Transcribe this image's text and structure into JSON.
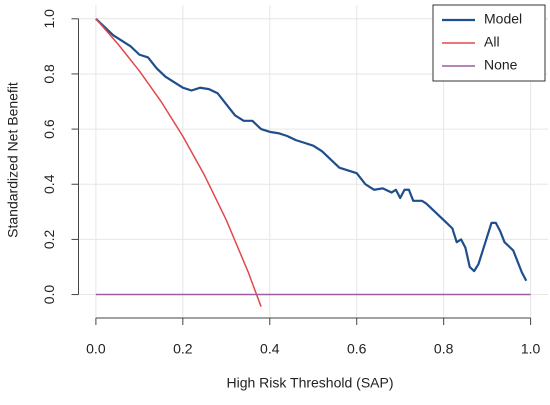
{
  "chart_data": {
    "type": "line",
    "xlabel": "High Risk Threshold (SAP)",
    "ylabel": "Standardized Net Benefit",
    "xlim": [
      -0.04,
      1.04
    ],
    "ylim": [
      -0.085,
      1.05
    ],
    "xticks": [
      {
        "value": 0,
        "label": "0.0"
      },
      0.2,
      0.4,
      0.6,
      0.8,
      {
        "value": 1,
        "label": "1.0"
      }
    ],
    "yticks": [
      {
        "value": 0,
        "label": "0.0"
      },
      0.2,
      0.4,
      0.6,
      0.8,
      {
        "value": 1,
        "label": "1.0"
      }
    ],
    "grid": true,
    "legend": "top-right",
    "series": [
      {
        "name": "Model",
        "color": "#1f4e8c",
        "x": [
          0,
          0.02,
          0.04,
          0.06,
          0.08,
          0.1,
          0.12,
          0.14,
          0.16,
          0.18,
          0.2,
          0.22,
          0.24,
          0.26,
          0.28,
          0.3,
          0.32,
          0.34,
          0.36,
          0.38,
          0.4,
          0.42,
          0.44,
          0.46,
          0.48,
          0.5,
          0.52,
          0.54,
          0.56,
          0.58,
          0.6,
          0.62,
          0.64,
          0.66,
          0.68,
          0.69,
          0.7,
          0.71,
          0.72,
          0.73,
          0.75,
          0.76,
          0.78,
          0.8,
          0.82,
          0.83,
          0.84,
          0.85,
          0.86,
          0.87,
          0.88,
          0.89,
          0.9,
          0.91,
          0.92,
          0.93,
          0.94,
          0.96,
          0.98,
          0.99
        ],
        "values": [
          1.0,
          0.97,
          0.94,
          0.92,
          0.9,
          0.87,
          0.86,
          0.82,
          0.79,
          0.77,
          0.75,
          0.74,
          0.75,
          0.745,
          0.73,
          0.69,
          0.65,
          0.63,
          0.63,
          0.6,
          0.59,
          0.585,
          0.575,
          0.56,
          0.55,
          0.54,
          0.52,
          0.49,
          0.46,
          0.45,
          0.44,
          0.4,
          0.38,
          0.385,
          0.37,
          0.38,
          0.35,
          0.38,
          0.38,
          0.34,
          0.34,
          0.33,
          0.3,
          0.27,
          0.24,
          0.19,
          0.2,
          0.17,
          0.1,
          0.085,
          0.11,
          0.16,
          0.21,
          0.26,
          0.26,
          0.23,
          0.19,
          0.16,
          0.08,
          0.05
        ]
      },
      {
        "name": "All",
        "color": "#e2484d",
        "x": [
          0,
          0.05,
          0.1,
          0.15,
          0.2,
          0.25,
          0.3,
          0.35,
          0.38
        ],
        "values": [
          1.0,
          0.91,
          0.811,
          0.7,
          0.574,
          0.432,
          0.27,
          0.083,
          -0.044
        ]
      },
      {
        "name": "None",
        "color": "#9b5f9b",
        "x": [
          0,
          1
        ],
        "values": [
          0,
          0
        ]
      }
    ]
  }
}
